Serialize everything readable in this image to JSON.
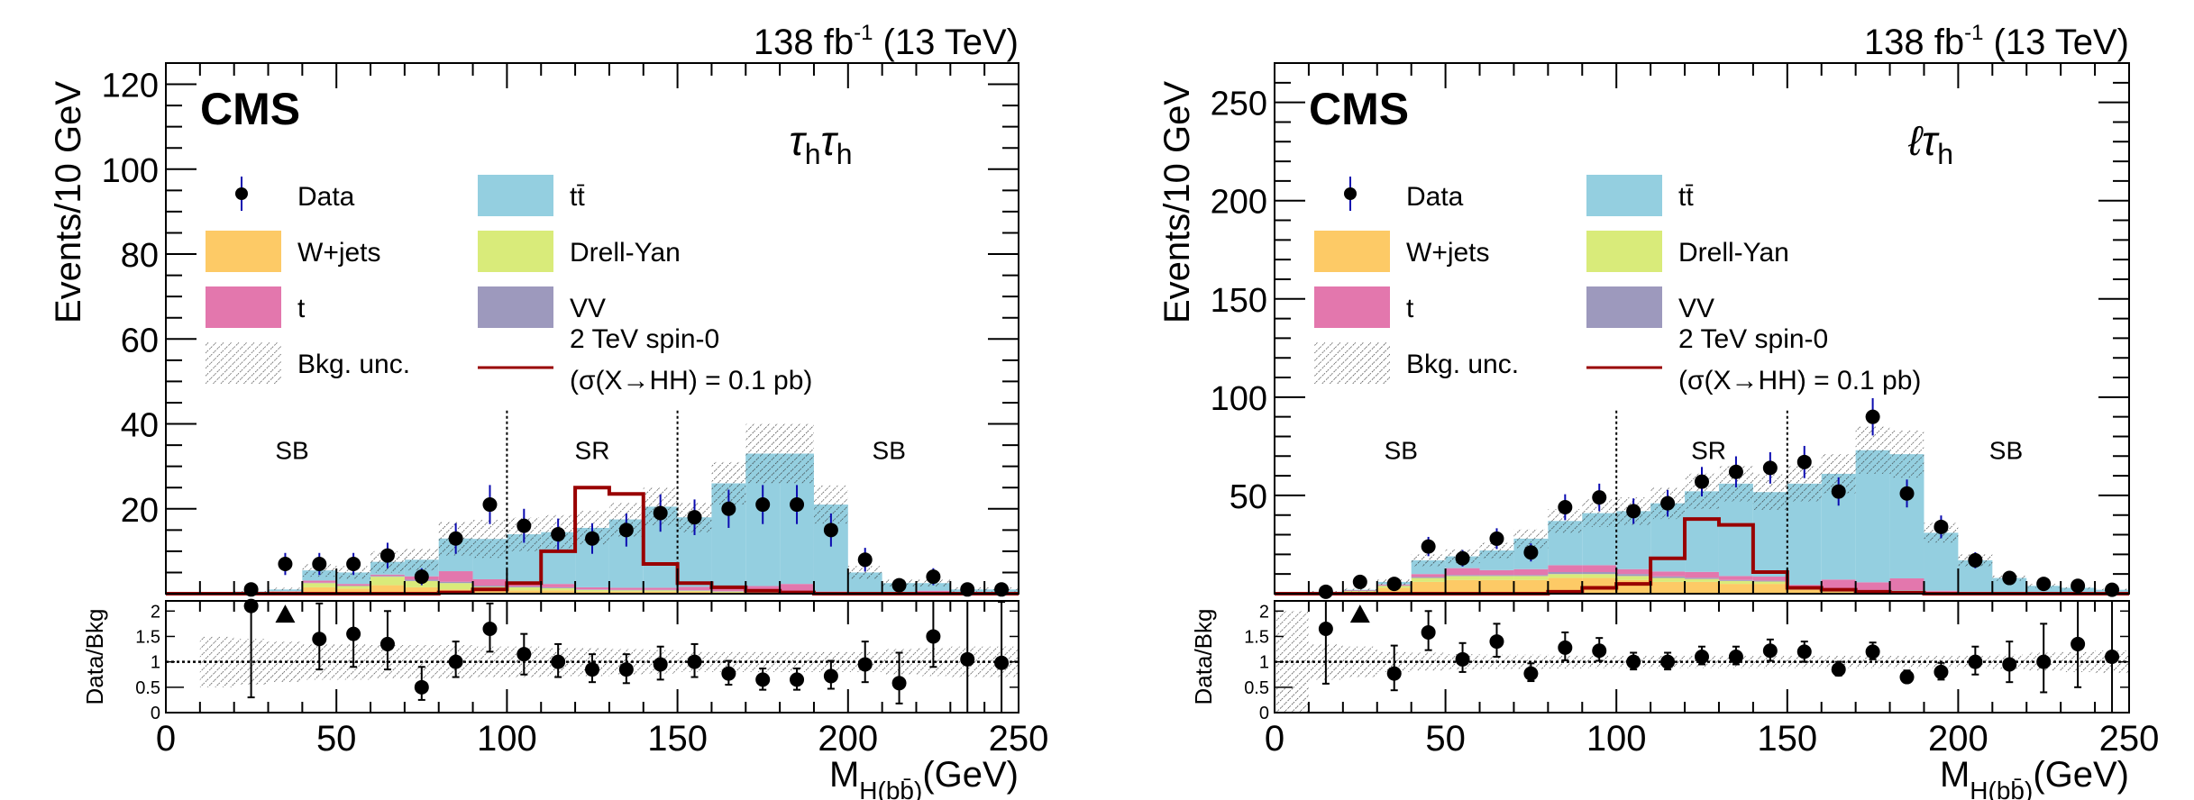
{
  "figure": {
    "panels": [
      "left",
      "right"
    ]
  },
  "chart_data": [
    {
      "type": "bar",
      "stacked": true,
      "channel_label": "τhτh",
      "lumi_label": "138 fb-1 (13 TeV)",
      "experiment_label": "CMS",
      "xlabel": "M_H(bb̄) (GeV)",
      "ylabel": "Events/10 GeV",
      "ratio_ylabel": "Data/Bkg",
      "xlim": [
        0,
        250
      ],
      "ylim": [
        0,
        125
      ],
      "ratio_ylim": [
        0,
        2.2
      ],
      "yticks": [
        20,
        40,
        60,
        80,
        100,
        120
      ],
      "xticks": [
        0,
        50,
        100,
        150,
        200,
        250
      ],
      "ratio_yticks": [
        0,
        0.5,
        1,
        1.5,
        2
      ],
      "bin_width": 10,
      "region_boundaries": [
        100,
        150
      ],
      "region_labels": [
        {
          "text": "SB",
          "x": 37
        },
        {
          "text": "SR",
          "x": 125
        },
        {
          "text": "SB",
          "x": 212
        }
      ],
      "x": [
        5,
        15,
        25,
        35,
        45,
        55,
        65,
        75,
        85,
        95,
        105,
        115,
        125,
        135,
        145,
        155,
        165,
        175,
        185,
        195,
        205,
        215,
        225,
        235,
        245
      ],
      "series": [
        {
          "name": "W+jets",
          "color": "#fdca66",
          "values": [
            0,
            0,
            0.2,
            0.3,
            1.5,
            1.2,
            2.0,
            1.5,
            1.0,
            0.8,
            0.8,
            0.8,
            0.5,
            0.5,
            0.5,
            0.5,
            0.3,
            0.2,
            0.2,
            0.1,
            0.1,
            0,
            0,
            0,
            0
          ]
        },
        {
          "name": "Drell-Yan",
          "color": "#d9eb7a",
          "values": [
            0,
            0,
            0.1,
            0.2,
            1.0,
            0.6,
            2.0,
            1.5,
            1.5,
            0.8,
            0.7,
            0.5,
            0.4,
            0.3,
            0.3,
            0.2,
            0.2,
            0.1,
            0.1,
            0.1,
            0,
            0,
            0,
            0,
            0
          ]
        },
        {
          "name": "VV",
          "color": "#9d99bd",
          "values": [
            0,
            0,
            0,
            0,
            0.1,
            0.1,
            0.2,
            0.3,
            0.3,
            0.3,
            0.2,
            0.2,
            0.1,
            0.1,
            0.1,
            0.1,
            0.1,
            0,
            0,
            0,
            0,
            0,
            0,
            0,
            0
          ]
        },
        {
          "name": "t",
          "color": "#e377ad",
          "values": [
            0,
            0,
            0.1,
            0.1,
            0.5,
            0.4,
            0.3,
            0.8,
            2.5,
            1.5,
            0.8,
            0.8,
            0.5,
            0.5,
            0.5,
            0.8,
            0.6,
            1.5,
            2.0,
            0.3,
            0.2,
            0.1,
            0.7,
            0.1,
            0.1
          ]
        },
        {
          "name": "tt̄",
          "color": "#94cfe0",
          "values": [
            0,
            0,
            0.1,
            0.4,
            2.4,
            2.7,
            3.0,
            3.9,
            7.7,
            9.5,
            11.5,
            12.2,
            14.0,
            16.1,
            19.1,
            16.4,
            24.8,
            31.2,
            30.7,
            20.5,
            4.7,
            2.4,
            1.8,
            0.9,
            0.9
          ]
        }
      ],
      "bkg_unc": [
        0,
        0,
        0.2,
        0.4,
        1.5,
        1.5,
        2.5,
        2.5,
        4,
        4.5,
        4,
        4,
        4,
        4,
        4.5,
        3.5,
        5,
        7,
        7,
        4.5,
        1.5,
        0.8,
        0.8,
        0.5,
        0.5
      ],
      "data": [
        0,
        0,
        1,
        7,
        7,
        7,
        9,
        4,
        13,
        21,
        16,
        14,
        13,
        15,
        19,
        18,
        20,
        21,
        21,
        15,
        8,
        2,
        4,
        1,
        1
      ],
      "data_err": [
        0,
        0,
        1,
        2.6,
        2.6,
        2.6,
        3,
        2,
        3.6,
        4.6,
        4,
        3.7,
        3.6,
        3.9,
        4.4,
        4.2,
        4.5,
        4.6,
        4.6,
        3.9,
        2.8,
        1.4,
        2,
        1,
        1
      ],
      "signal": {
        "name": "2 TeV spin-0 (σ(X→HH) = 0.1 pb)",
        "color": "#990000",
        "values": [
          0,
          0,
          0,
          0,
          0,
          0,
          0,
          0,
          0.3,
          1,
          2.5,
          10,
          25,
          23.5,
          7,
          2.5,
          1.5,
          0.7,
          0.3,
          0,
          0,
          0,
          0,
          0,
          0
        ]
      },
      "ratio": {
        "values": [
          null,
          null,
          2.1,
          null,
          1.45,
          1.55,
          1.35,
          0.5,
          1.0,
          1.65,
          1.15,
          1.0,
          0.85,
          0.85,
          0.95,
          1.0,
          0.77,
          0.65,
          0.65,
          0.72,
          0.95,
          0.58,
          1.5,
          1.05,
          0.98
        ],
        "err_lo": [
          0,
          0,
          1.8,
          0,
          0.6,
          0.65,
          0.5,
          0.25,
          0.3,
          0.45,
          0.4,
          0.3,
          0.25,
          0.27,
          0.3,
          0.3,
          0.22,
          0.2,
          0.2,
          0.25,
          0.35,
          0.4,
          0.6,
          1.05,
          0.98
        ],
        "err_hi": [
          0,
          0,
          0.3,
          0,
          0.7,
          0.7,
          0.65,
          0.4,
          0.4,
          0.5,
          0.4,
          0.35,
          0.3,
          0.3,
          0.35,
          0.35,
          0.25,
          0.22,
          0.22,
          0.3,
          0.45,
          0.6,
          0.7,
          1.2,
          1.2
        ],
        "offscale_marker_x": 35,
        "unc_band": [
          null,
          0.5,
          0.45,
          0.4,
          0.35,
          0.35,
          0.33,
          0.33,
          0.33,
          0.3,
          0.3,
          0.28,
          0.28,
          0.25,
          0.23,
          0.2,
          0.2,
          0.2,
          0.2,
          0.2,
          0.2,
          0.25,
          0.28,
          0.3,
          0.3
        ]
      },
      "legend": {
        "placement": "top-left",
        "entries": [
          {
            "label": "Data",
            "kind": "marker"
          },
          {
            "label": "Drell-Yan",
            "kind": "fill",
            "color": "#d9eb7a"
          },
          {
            "label": "W+jets",
            "kind": "fill",
            "color": "#fdca66"
          },
          {
            "label": "tt̄",
            "kind": "fill",
            "color": "#94cfe0"
          },
          {
            "label": "t",
            "kind": "fill",
            "color": "#e377ad"
          },
          {
            "label": "VV",
            "kind": "fill",
            "color": "#9d99bd"
          },
          {
            "label": "Bkg. unc.",
            "kind": "hatch"
          },
          {
            "label": "2 TeV spin-0",
            "label2": "(σ(X→HH) = 0.1 pb)",
            "kind": "line",
            "color": "#990000"
          }
        ]
      }
    },
    {
      "type": "bar",
      "stacked": true,
      "channel_label": "ℓτh",
      "lumi_label": "138 fb-1 (13 TeV)",
      "experiment_label": "CMS",
      "xlabel": "M_H(bb̄) (GeV)",
      "ylabel": "Events/10 GeV",
      "ratio_ylabel": "Data/Bkg",
      "xlim": [
        0,
        250
      ],
      "ylim": [
        0,
        270
      ],
      "ratio_ylim": [
        0,
        2.2
      ],
      "yticks": [
        50,
        100,
        150,
        200,
        250
      ],
      "xticks": [
        0,
        50,
        100,
        150,
        200,
        250
      ],
      "ratio_yticks": [
        0,
        0.5,
        1,
        1.5,
        2
      ],
      "bin_width": 10,
      "region_boundaries": [
        100,
        150
      ],
      "region_labels": [
        {
          "text": "SB",
          "x": 37
        },
        {
          "text": "SR",
          "x": 127
        },
        {
          "text": "SB",
          "x": 214
        }
      ],
      "x": [
        5,
        15,
        25,
        35,
        45,
        55,
        65,
        75,
        85,
        95,
        105,
        115,
        125,
        135,
        145,
        155,
        165,
        175,
        185,
        195,
        205,
        215,
        225,
        235,
        245
      ],
      "series": [
        {
          "name": "W+jets",
          "color": "#fdca66",
          "values": [
            0,
            0.3,
            1,
            3,
            6,
            7,
            7,
            7,
            8,
            8,
            7,
            6,
            6,
            5,
            5,
            2,
            1,
            1,
            1,
            0.5,
            0.3,
            0.2,
            0.2,
            0.1,
            0.1
          ]
        },
        {
          "name": "Drell-Yan",
          "color": "#d9eb7a",
          "values": [
            0,
            0.2,
            0.5,
            1,
            2,
            2,
            2,
            2,
            2,
            2,
            2,
            2,
            1.5,
            1.5,
            1.2,
            1,
            0.8,
            0.5,
            0.5,
            0.3,
            0.2,
            0.2,
            0.1,
            0.1,
            0.1
          ]
        },
        {
          "name": "VV",
          "color": "#9d99bd",
          "values": [
            0,
            0,
            0.1,
            0.2,
            0.5,
            0.5,
            0.5,
            0.5,
            1,
            1,
            1,
            0.8,
            0.6,
            0.5,
            0.5,
            0.5,
            0.4,
            0.3,
            0.3,
            0.2,
            0.1,
            0.1,
            0.1,
            0,
            0
          ]
        },
        {
          "name": "t",
          "color": "#e377ad",
          "values": [
            0,
            0,
            0.2,
            0.5,
            1.5,
            3.5,
            2.5,
            3,
            3.5,
            3.5,
            2.5,
            2.5,
            3,
            2,
            2,
            1,
            5,
            4,
            6,
            0.5,
            0.4,
            0.3,
            0.3,
            0.3,
            0.8
          ]
        },
        {
          "name": "tt̄",
          "color": "#94cfe0",
          "values": [
            0,
            0.5,
            0.2,
            1.3,
            7,
            6,
            10,
            15.5,
            22.5,
            26.5,
            29.5,
            34.7,
            41,
            47,
            43,
            51.5,
            53.8,
            67.2,
            63.2,
            29.5,
            16,
            7.2,
            3.3,
            2.5,
            1
          ]
        }
      ],
      "bkg_unc": [
        0,
        0.5,
        0.8,
        1.5,
        3,
        3.5,
        4,
        5,
        6,
        7,
        7,
        8,
        9,
        9,
        9,
        9,
        10,
        12,
        12,
        5,
        3,
        1.5,
        1,
        0.8,
        0.6
      ],
      "data": [
        0,
        1,
        6,
        5,
        24,
        18,
        28,
        21,
        44,
        49,
        42,
        46,
        57,
        62,
        64,
        67,
        52,
        90,
        51,
        34,
        17,
        8,
        5,
        4,
        2
      ],
      "data_err": [
        0,
        1,
        2.4,
        2.2,
        4.9,
        4.2,
        5.3,
        4.6,
        6.6,
        7,
        6.5,
        6.8,
        7.5,
        7.9,
        8,
        8.2,
        7.2,
        9.5,
        7.1,
        5.8,
        4.1,
        2.8,
        2.2,
        2,
        1.4
      ],
      "signal": {
        "name": "2 TeV spin-0 (σ(X→HH) = 0.1 pb)",
        "color": "#990000",
        "values": [
          0,
          0,
          0,
          0,
          0,
          0,
          0,
          0,
          1,
          3,
          5,
          18,
          38,
          35,
          11,
          3,
          2,
          1,
          0.5,
          0,
          0,
          0,
          0,
          0,
          0
        ]
      },
      "ratio": {
        "values": [
          null,
          1.65,
          null,
          0.77,
          1.58,
          1.05,
          1.4,
          0.77,
          1.28,
          1.22,
          1.0,
          1.0,
          1.1,
          1.1,
          1.22,
          1.2,
          0.85,
          1.2,
          0.7,
          0.8,
          1.0,
          0.95,
          1.0,
          1.35,
          1.1
        ],
        "err_lo": [
          0,
          1.08,
          0,
          0.33,
          0.35,
          0.25,
          0.3,
          0.15,
          0.25,
          0.2,
          0.15,
          0.15,
          0.15,
          0.15,
          0.2,
          0.2,
          0.12,
          0.15,
          0.1,
          0.15,
          0.25,
          0.35,
          0.6,
          0.85,
          1.1
        ],
        "err_hi": [
          0,
          0.55,
          0,
          0.55,
          0.42,
          0.32,
          0.35,
          0.2,
          0.3,
          0.25,
          0.18,
          0.18,
          0.2,
          0.2,
          0.22,
          0.2,
          0.15,
          0.18,
          0.13,
          0.18,
          0.3,
          0.45,
          0.75,
          0.9,
          1.2
        ],
        "offscale_marker_x": 25,
        "unc_band": [
          1.0,
          0.35,
          0.3,
          0.2,
          0.18,
          0.15,
          0.14,
          0.14,
          0.13,
          0.12,
          0.12,
          0.12,
          0.12,
          0.12,
          0.12,
          0.12,
          0.12,
          0.12,
          0.12,
          0.12,
          0.12,
          0.14,
          0.18,
          0.2,
          0.22
        ]
      },
      "legend": {
        "placement": "top-left",
        "entries": [
          {
            "label": "Data",
            "kind": "marker"
          },
          {
            "label": "Drell-Yan",
            "kind": "fill",
            "color": "#d9eb7a"
          },
          {
            "label": "W+jets",
            "kind": "fill",
            "color": "#fdca66"
          },
          {
            "label": "tt̄",
            "kind": "fill",
            "color": "#94cfe0"
          },
          {
            "label": "t",
            "kind": "fill",
            "color": "#e377ad"
          },
          {
            "label": "VV",
            "kind": "fill",
            "color": "#9d99bd"
          },
          {
            "label": "Bkg. unc.",
            "kind": "hatch"
          },
          {
            "label": "2 TeV spin-0",
            "label2": "(σ(X→HH) = 0.1 pb)",
            "kind": "line",
            "color": "#990000"
          }
        ]
      }
    }
  ]
}
